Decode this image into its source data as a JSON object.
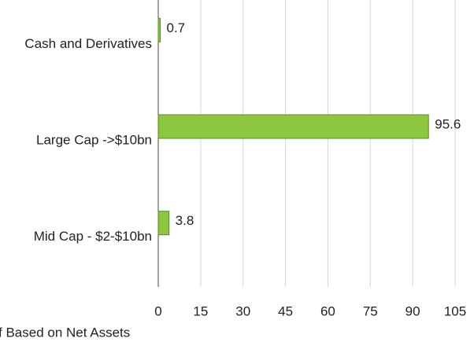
{
  "chart_data": {
    "type": "bar",
    "orientation": "horizontal",
    "categories": [
      "Cash and Derivatives",
      "Large Cap ->$10bn",
      "Mid Cap - $2-$10bn"
    ],
    "values": [
      0.7,
      95.6,
      3.8
    ],
    "color": "#8dc63f",
    "xlabel": "f Based on Net Assets",
    "xlim": [
      0,
      105
    ],
    "xticks": [
      0,
      15,
      30,
      45,
      60,
      75,
      90,
      105
    ],
    "grid": true
  }
}
